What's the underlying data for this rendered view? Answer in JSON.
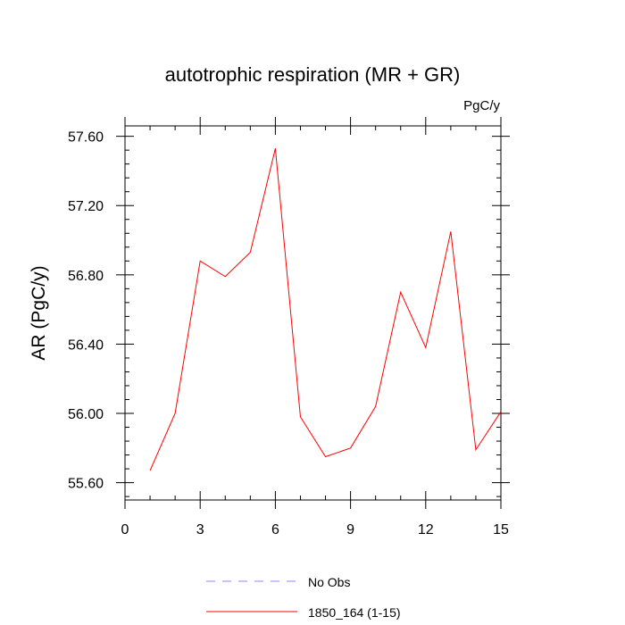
{
  "chart_data": {
    "type": "line",
    "title": "autotrophic respiration (MR + GR)",
    "units_label": "PgC/y",
    "ylabel": "AR  (PgC/y)",
    "xlabel": "",
    "xlim": [
      0,
      15
    ],
    "ylim": [
      55.5,
      57.66
    ],
    "x_ticks": [
      0,
      3,
      6,
      9,
      12,
      15
    ],
    "x_tick_labels": [
      "0",
      "3",
      "6",
      "9",
      "12",
      "15"
    ],
    "y_ticks": [
      55.6,
      56.0,
      56.4,
      56.8,
      57.2,
      57.6
    ],
    "y_tick_labels": [
      "55.60",
      "56.00",
      "56.40",
      "56.80",
      "57.20",
      "57.60"
    ],
    "grid": false,
    "legend_position": "bottom",
    "series": [
      {
        "name": "No Obs",
        "color": "#8888ff",
        "dash": "dashed",
        "x": [],
        "y": []
      },
      {
        "name": "1850_164 (1-15)",
        "color": "#ff0000",
        "dash": "solid",
        "x": [
          1,
          2,
          3,
          4,
          5,
          6,
          7,
          8,
          9,
          10,
          11,
          12,
          13,
          14,
          15
        ],
        "y": [
          55.67,
          56.0,
          56.88,
          56.79,
          56.93,
          57.53,
          55.98,
          55.75,
          55.8,
          56.04,
          56.7,
          56.38,
          57.05,
          55.79,
          56.01
        ]
      }
    ]
  }
}
